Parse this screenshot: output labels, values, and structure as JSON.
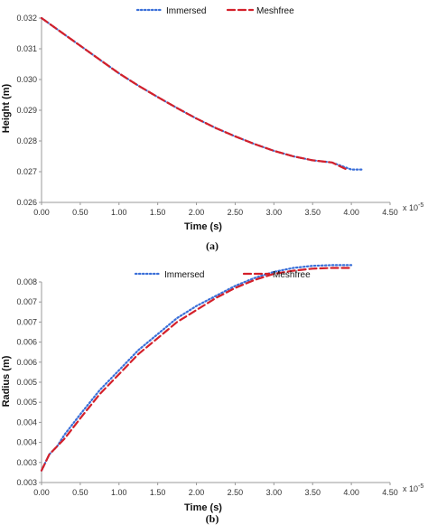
{
  "colors": {
    "immersed": "#3a6fd8",
    "meshfree": "#d4202a",
    "axis": "#999999"
  },
  "chart_data": [
    {
      "type": "line",
      "caption": "(a)",
      "xlabel": "Time (s)",
      "ylabel": "Height (m)",
      "x_multiplier": "x 10",
      "x_multiplier_exp": "-5",
      "xlim": [
        0,
        4.5
      ],
      "ylim": [
        0.026,
        0.032
      ],
      "xticks": [
        "0.00",
        "0.50",
        "1.00",
        "1.50",
        "2.00",
        "2.50",
        "3.00",
        "3.50",
        "4.00",
        "4.50"
      ],
      "yticks": [
        "0.026",
        "0.027",
        "0.028",
        "0.029",
        "0.030",
        "0.031",
        "0.032"
      ],
      "legend": {
        "placement": "top",
        "entries": [
          "Immersed",
          "Meshfree"
        ]
      },
      "series": [
        {
          "name": "Immersed",
          "style": "dotted",
          "x": [
            0,
            0.25,
            0.5,
            0.75,
            1.0,
            1.25,
            1.5,
            1.75,
            2.0,
            2.25,
            2.5,
            2.75,
            3.0,
            3.25,
            3.5,
            3.75,
            4.0,
            4.15
          ],
          "y": [
            0.032,
            0.03155,
            0.0311,
            0.03065,
            0.0302,
            0.0298,
            0.02943,
            0.02907,
            0.02873,
            0.02842,
            0.02815,
            0.0279,
            0.02768,
            0.0275,
            0.02737,
            0.0273,
            0.02707,
            0.02707
          ]
        },
        {
          "name": "Meshfree",
          "style": "dashed",
          "x": [
            0,
            0.25,
            0.5,
            0.75,
            1.0,
            1.25,
            1.5,
            1.75,
            2.0,
            2.25,
            2.5,
            2.75,
            3.0,
            3.25,
            3.5,
            3.75,
            3.95
          ],
          "y": [
            0.032,
            0.03155,
            0.0311,
            0.03065,
            0.0302,
            0.0298,
            0.02943,
            0.02907,
            0.02873,
            0.02842,
            0.02815,
            0.0279,
            0.02768,
            0.0275,
            0.02737,
            0.0273,
            0.02706
          ]
        }
      ]
    },
    {
      "type": "line",
      "caption": "(b)",
      "xlabel": "Time (s)",
      "ylabel": "Radius (m)",
      "x_multiplier": "x 10",
      "x_multiplier_exp": "-5",
      "xlim": [
        0,
        4.5
      ],
      "ylim": [
        0.003,
        0.008
      ],
      "xticks": [
        "0.00",
        "0.50",
        "1.00",
        "1.50",
        "2.00",
        "2.50",
        "3.00",
        "3.50",
        "4.00",
        "4.50"
      ],
      "yticks": [
        "0.003",
        "0.003",
        "0.004",
        "0.004",
        "0.005",
        "0.005",
        "0.006",
        "0.006",
        "0.007",
        "0.007",
        "0.008"
      ],
      "legend": {
        "placement": "top",
        "entries": [
          "Immersed",
          "Meshfree"
        ]
      },
      "series": [
        {
          "name": "Immersed",
          "style": "dotted",
          "x": [
            0,
            0.05,
            0.1,
            0.2,
            0.3,
            0.5,
            0.75,
            1.0,
            1.25,
            1.5,
            1.75,
            2.0,
            2.25,
            2.5,
            2.75,
            3.0,
            3.25,
            3.5,
            3.75,
            4.0
          ],
          "y": [
            0.0033,
            0.0035,
            0.0037,
            0.0039,
            0.0042,
            0.0047,
            0.0053,
            0.0058,
            0.0063,
            0.0067,
            0.0071,
            0.0074,
            0.00765,
            0.0079,
            0.0081,
            0.00825,
            0.00835,
            0.0084,
            0.00842,
            0.00842
          ]
        },
        {
          "name": "Meshfree",
          "style": "dashed",
          "x": [
            0,
            0.05,
            0.1,
            0.2,
            0.3,
            0.5,
            0.75,
            1.0,
            1.25,
            1.5,
            1.75,
            2.0,
            2.25,
            2.5,
            2.75,
            3.0,
            3.25,
            3.5,
            3.75,
            4.0
          ],
          "y": [
            0.0033,
            0.0035,
            0.0037,
            0.0039,
            0.0041,
            0.0046,
            0.0052,
            0.0057,
            0.0062,
            0.0066,
            0.007,
            0.0073,
            0.0076,
            0.00785,
            0.00805,
            0.0082,
            0.00828,
            0.00833,
            0.00835,
            0.00835
          ]
        }
      ]
    }
  ]
}
